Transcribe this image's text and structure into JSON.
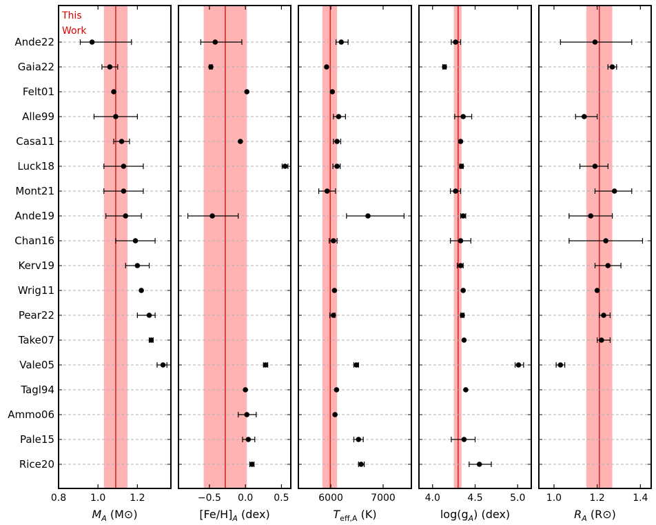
{
  "colors": {
    "band": "#ff9999",
    "line": "#d62728",
    "marker": "#000000",
    "grid": "#b0b0b0",
    "annotation": "#e00000"
  },
  "annotation": {
    "line1": "This",
    "line2": "Work"
  },
  "studies": [
    "Ande22",
    "Gaia22",
    "Felt01",
    "Alle99",
    "Casa11",
    "Luck18",
    "Mont21",
    "Ande19",
    "Chan16",
    "Kerv19",
    "Wrig11",
    "Pear22",
    "Take07",
    "Vale05",
    "Tagl94",
    "Ammo06",
    "Pale15",
    "Rice20"
  ],
  "chart_data": [
    {
      "type": "scatter",
      "id": "mass",
      "xlabel_main": "M",
      "xlabel_sub": "A",
      "xlabel_unit": " (M⊙)",
      "xlim": [
        0.8,
        1.37
      ],
      "xticks": [
        0.8,
        1.0,
        1.2
      ],
      "xtick_labels": [
        "0.8",
        "1.0",
        "1.2"
      ],
      "this_work": {
        "value": 1.09,
        "low": 1.03,
        "high": 1.15
      },
      "points": [
        {
          "v": 0.97,
          "lo": 0.91,
          "hi": 1.17
        },
        {
          "v": 1.06,
          "lo": 1.02,
          "hi": 1.1
        },
        {
          "v": 1.08,
          "lo": null,
          "hi": null
        },
        {
          "v": 1.09,
          "lo": 0.98,
          "hi": 1.2
        },
        {
          "v": 1.12,
          "lo": 1.08,
          "hi": 1.16
        },
        {
          "v": 1.13,
          "lo": 1.03,
          "hi": 1.23
        },
        {
          "v": 1.13,
          "lo": 1.03,
          "hi": 1.23
        },
        {
          "v": 1.14,
          "lo": 1.04,
          "hi": 1.22
        },
        {
          "v": 1.19,
          "lo": 1.09,
          "hi": 1.29
        },
        {
          "v": 1.2,
          "lo": 1.14,
          "hi": 1.26
        },
        {
          "v": 1.22,
          "lo": null,
          "hi": null
        },
        {
          "v": 1.26,
          "lo": 1.2,
          "hi": 1.29
        },
        {
          "v": 1.27,
          "lo": 1.26,
          "hi": 1.28
        },
        {
          "v": 1.33,
          "lo": 1.3,
          "hi": 1.35
        },
        {
          "v": null,
          "lo": null,
          "hi": null
        },
        {
          "v": null,
          "lo": null,
          "hi": null
        },
        {
          "v": null,
          "lo": null,
          "hi": null
        },
        {
          "v": null,
          "lo": null,
          "hi": null
        }
      ]
    },
    {
      "type": "scatter",
      "id": "metallicity",
      "xlabel_main": "[Fe/H]",
      "xlabel_sub": "A",
      "xlabel_unit": " (dex)",
      "xlim": [
        -0.93,
        0.63
      ],
      "xticks": [
        -0.5,
        0.0,
        0.5
      ],
      "xtick_labels": [
        "−0.5",
        "0.0",
        "0.5"
      ],
      "this_work": {
        "value": -0.28,
        "low": -0.58,
        "high": 0.02
      },
      "points": [
        {
          "v": -0.42,
          "lo": -0.62,
          "hi": -0.05
        },
        {
          "v": -0.48,
          "lo": -0.5,
          "hi": -0.46
        },
        {
          "v": 0.02,
          "lo": null,
          "hi": null
        },
        {
          "v": null,
          "lo": null,
          "hi": null
        },
        {
          "v": -0.07,
          "lo": null,
          "hi": null
        },
        {
          "v": 0.55,
          "lo": 0.51,
          "hi": 0.59
        },
        {
          "v": null,
          "lo": null,
          "hi": null
        },
        {
          "v": -0.46,
          "lo": -0.8,
          "hi": -0.1
        },
        {
          "v": null,
          "lo": null,
          "hi": null
        },
        {
          "v": null,
          "lo": null,
          "hi": null
        },
        {
          "v": null,
          "lo": null,
          "hi": null
        },
        {
          "v": null,
          "lo": null,
          "hi": null
        },
        {
          "v": null,
          "lo": null,
          "hi": null
        },
        {
          "v": 0.28,
          "lo": 0.25,
          "hi": 0.31
        },
        {
          "v": 0.0,
          "lo": null,
          "hi": null
        },
        {
          "v": 0.02,
          "lo": -0.1,
          "hi": 0.15
        },
        {
          "v": 0.04,
          "lo": -0.04,
          "hi": 0.13
        },
        {
          "v": 0.09,
          "lo": 0.06,
          "hi": 0.12
        }
      ]
    },
    {
      "type": "scatter",
      "id": "teff",
      "xlabel_main": "T",
      "xlabel_sub": "eff,A",
      "xlabel_unit": " (K)",
      "xlim": [
        5380,
        7540
      ],
      "xticks": [
        6000,
        7000
      ],
      "xtick_labels": [
        "6000",
        "7000"
      ],
      "this_work": {
        "value": 5990,
        "low": 5840,
        "high": 6120
      },
      "points": [
        {
          "v": 6200,
          "lo": 6100,
          "hi": 6330
        },
        {
          "v": 5920,
          "lo": null,
          "hi": null
        },
        {
          "v": 6030,
          "lo": null,
          "hi": null
        },
        {
          "v": 6150,
          "lo": 6050,
          "hi": 6280
        },
        {
          "v": 6120,
          "lo": 6050,
          "hi": 6190
        },
        {
          "v": 6120,
          "lo": 6040,
          "hi": 6180
        },
        {
          "v": 5930,
          "lo": 5770,
          "hi": 6090
        },
        {
          "v": 6710,
          "lo": 6300,
          "hi": 7400
        },
        {
          "v": 6050,
          "lo": 5970,
          "hi": 6120
        },
        {
          "v": null,
          "lo": null,
          "hi": null
        },
        {
          "v": 6070,
          "lo": null,
          "hi": null
        },
        {
          "v": 6050,
          "lo": 5980,
          "hi": 6080
        },
        {
          "v": null,
          "lo": null,
          "hi": null
        },
        {
          "v": 6490,
          "lo": 6440,
          "hi": 6530
        },
        {
          "v": 6110,
          "lo": null,
          "hi": null
        },
        {
          "v": 6080,
          "lo": null,
          "hi": null
        },
        {
          "v": 6530,
          "lo": 6440,
          "hi": 6620
        },
        {
          "v": 6580,
          "lo": 6530,
          "hi": 6640
        }
      ]
    },
    {
      "type": "scatter",
      "id": "logg",
      "xlabel_main": "log(g",
      "xlabel_sub": "A",
      "xlabel_unit": ") (dex)",
      "xlim": [
        3.84,
        5.16
      ],
      "xticks": [
        4.0,
        4.5,
        5.0
      ],
      "xtick_labels": [
        "4.0",
        "4.5",
        "5.0"
      ],
      "this_work": {
        "value": 4.3,
        "low": 4.25,
        "high": 4.34
      },
      "points": [
        {
          "v": 4.27,
          "lo": 4.22,
          "hi": 4.33
        },
        {
          "v": 4.14,
          "lo": 4.12,
          "hi": 4.16
        },
        {
          "v": null,
          "lo": null,
          "hi": null
        },
        {
          "v": 4.36,
          "lo": 4.26,
          "hi": 4.46
        },
        {
          "v": 4.33,
          "lo": null,
          "hi": null
        },
        {
          "v": 4.34,
          "lo": 4.32,
          "hi": 4.36
        },
        {
          "v": 4.27,
          "lo": 4.21,
          "hi": 4.33
        },
        {
          "v": 4.36,
          "lo": 4.33,
          "hi": 4.39
        },
        {
          "v": 4.33,
          "lo": 4.21,
          "hi": 4.45
        },
        {
          "v": 4.33,
          "lo": 4.29,
          "hi": 4.36
        },
        {
          "v": 4.36,
          "lo": null,
          "hi": null
        },
        {
          "v": 4.35,
          "lo": 4.33,
          "hi": 4.37
        },
        {
          "v": 4.37,
          "lo": null,
          "hi": null
        },
        {
          "v": 5.01,
          "lo": 4.97,
          "hi": 5.07
        },
        {
          "v": 4.39,
          "lo": null,
          "hi": null
        },
        {
          "v": null,
          "lo": null,
          "hi": null
        },
        {
          "v": 4.37,
          "lo": 4.22,
          "hi": 4.5
        },
        {
          "v": 4.55,
          "lo": 4.43,
          "hi": 4.69
        }
      ]
    },
    {
      "type": "scatter",
      "id": "radius",
      "xlabel_main": "R",
      "xlabel_sub": "A",
      "xlabel_unit": " (R⊙)",
      "xlim": [
        0.93,
        1.45
      ],
      "xticks": [
        1.0,
        1.2,
        1.4
      ],
      "xtick_labels": [
        "1.0",
        "1.2",
        "1.4"
      ],
      "this_work": {
        "value": 1.21,
        "low": 1.15,
        "high": 1.27
      },
      "points": [
        {
          "v": 1.19,
          "lo": 1.03,
          "hi": 1.36
        },
        {
          "v": 1.27,
          "lo": 1.25,
          "hi": 1.29
        },
        {
          "v": null,
          "lo": null,
          "hi": null
        },
        {
          "v": 1.14,
          "lo": 1.1,
          "hi": 1.2
        },
        {
          "v": null,
          "lo": null,
          "hi": null
        },
        {
          "v": 1.19,
          "lo": 1.12,
          "hi": 1.25
        },
        {
          "v": 1.28,
          "lo": 1.19,
          "hi": 1.36
        },
        {
          "v": 1.17,
          "lo": 1.07,
          "hi": 1.27
        },
        {
          "v": 1.24,
          "lo": 1.07,
          "hi": 1.41
        },
        {
          "v": 1.25,
          "lo": 1.19,
          "hi": 1.31
        },
        {
          "v": 1.2,
          "lo": null,
          "hi": null
        },
        {
          "v": 1.23,
          "lo": 1.21,
          "hi": 1.26
        },
        {
          "v": 1.22,
          "lo": 1.2,
          "hi": 1.26
        },
        {
          "v": 1.03,
          "lo": 1.01,
          "hi": 1.05
        },
        {
          "v": null,
          "lo": null,
          "hi": null
        },
        {
          "v": null,
          "lo": null,
          "hi": null
        },
        {
          "v": null,
          "lo": null,
          "hi": null
        },
        {
          "v": null,
          "lo": null,
          "hi": null
        }
      ]
    }
  ]
}
